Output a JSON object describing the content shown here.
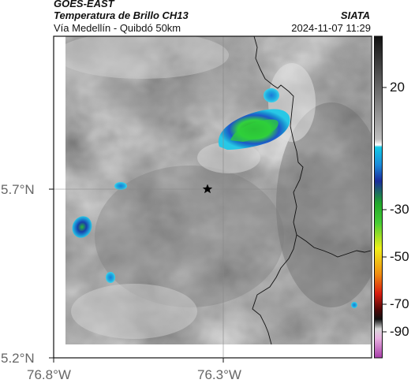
{
  "header": {
    "satellite": "GOES-EAST",
    "product": "Temperatura de Brillo CH13",
    "region": "Vía Medellín - Quibdó 50km",
    "source": "SIATA",
    "timestamp": "2024-11-07 11:29"
  },
  "axes": {
    "lat_ticks": [
      "5.7°N",
      "5.2°N"
    ],
    "lon_ticks": [
      "76.8°W",
      "76.3°W"
    ]
  },
  "colorbar": {
    "tick_labels": [
      "20",
      "-30",
      "-50",
      "-70",
      "-90"
    ]
  },
  "colors": {
    "cold_cyan": "#1fb8e0",
    "cold_blue": "#1a5fd6",
    "cold_green": "#2bd43a",
    "background": "#ffffff"
  }
}
